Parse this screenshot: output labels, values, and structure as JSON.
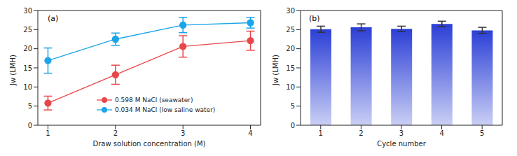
{
  "chart_data": [
    {
      "type": "line",
      "title": "(a)",
      "x_label": "Draw solution concentration (M)",
      "y_label": "Jw (LMH)",
      "x": [
        1,
        2,
        3,
        4
      ],
      "xlim": [
        0.85,
        4.15
      ],
      "xticks": [
        1,
        2,
        3,
        4
      ],
      "ylim": [
        0,
        30
      ],
      "yticks": [
        0,
        5,
        10,
        15,
        20,
        25,
        30
      ],
      "legend": "lower right",
      "series": [
        {
          "name": "0.598 M NaCl (seawater)",
          "color": "#e8474a",
          "marker": "circle",
          "line_style": "solid",
          "values": [
            5.8,
            13.2,
            20.6,
            22.1
          ],
          "errors": [
            1.8,
            2.5,
            2.8,
            2.5
          ]
        },
        {
          "name": "0.034 M NaCl (low saline water)",
          "color": "#1ca4e8",
          "marker": "circle",
          "line_style": "solid",
          "values": [
            16.9,
            22.5,
            26.2,
            26.8
          ],
          "errors": [
            3.3,
            1.6,
            2.0,
            1.4
          ]
        }
      ]
    },
    {
      "type": "bar",
      "title": "(b)",
      "x_label": "Cycle number",
      "y_label": "Jw (LMH)",
      "categories": [
        "1",
        "2",
        "3",
        "4",
        "5"
      ],
      "values": [
        25.1,
        25.6,
        25.2,
        26.5,
        24.8
      ],
      "errors": [
        0.8,
        0.9,
        0.7,
        0.7,
        0.8
      ],
      "color": "#2b3fd6",
      "ylim": [
        0,
        30
      ],
      "yticks": [
        0,
        5,
        10,
        15,
        20,
        25,
        30
      ]
    }
  ]
}
